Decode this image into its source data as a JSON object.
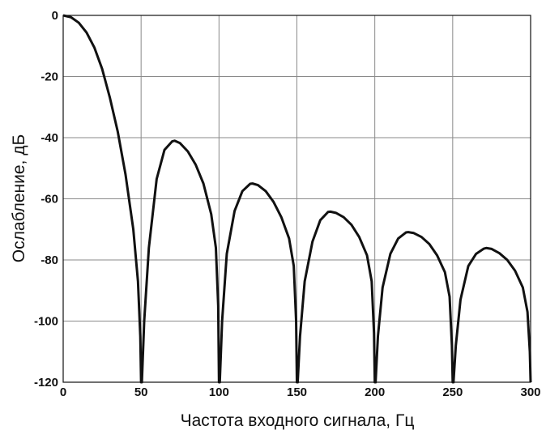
{
  "chart_data": {
    "type": "line",
    "title": "",
    "xlabel": "Частота входного сигнала, Гц",
    "ylabel": "Ослабление, дБ",
    "xlim": [
      0,
      300
    ],
    "ylim": [
      -120,
      0
    ],
    "xticks": [
      0,
      50,
      100,
      150,
      200,
      250,
      300
    ],
    "yticks": [
      0,
      -20,
      -40,
      -60,
      -80,
      -100,
      -120
    ],
    "grid": true,
    "legend": "none",
    "line_color": "#111111",
    "series": [
      {
        "x": [
          0,
          5,
          10,
          15,
          20,
          25,
          30,
          35,
          40,
          45,
          48,
          49.5,
          50,
          50.5,
          52,
          55,
          60,
          65,
          70,
          71.5,
          75,
          80,
          85,
          90,
          95,
          98,
          99.5,
          100,
          100.5,
          102,
          105,
          110,
          115,
          120,
          121.5,
          125,
          130,
          135,
          140,
          145,
          148,
          149.5,
          150,
          150.5,
          152,
          155,
          160,
          165,
          170,
          171.5,
          175,
          180,
          185,
          190,
          195,
          198,
          199.5,
          200,
          200.5,
          202,
          205,
          210,
          215,
          220,
          221.5,
          225,
          230,
          235,
          240,
          245,
          248,
          249.5,
          250,
          250.5,
          252,
          255,
          260,
          265,
          270,
          271.5,
          275,
          280,
          285,
          290,
          295,
          298,
          299.5,
          300
        ],
        "y": [
          0,
          -0.6,
          -2.4,
          -5.6,
          -10.5,
          -17.5,
          -27.0,
          -38.0,
          -52.0,
          -70.0,
          -87.0,
          -105.0,
          -120.0,
          -120.0,
          -100.0,
          -76.0,
          -53.5,
          -44.0,
          -41.2,
          -41.0,
          -41.8,
          -44.5,
          -48.8,
          -55.0,
          -65.0,
          -76.0,
          -95.0,
          -120.0,
          -120.0,
          -100.0,
          -78.0,
          -64.0,
          -57.5,
          -55.1,
          -55.0,
          -55.5,
          -57.5,
          -61.0,
          -66.0,
          -73.0,
          -82.0,
          -100.0,
          -120.0,
          -120.0,
          -105.0,
          -87.0,
          -74.0,
          -67.0,
          -64.3,
          -64.2,
          -64.6,
          -66.0,
          -68.5,
          -72.5,
          -78.5,
          -87.0,
          -104.0,
          -120.0,
          -120.0,
          -105.0,
          -89.0,
          -78.0,
          -73.0,
          -71.0,
          -70.9,
          -71.2,
          -72.5,
          -74.8,
          -78.5,
          -84.0,
          -92.0,
          -108.0,
          -120.0,
          -120.0,
          -108.0,
          -93.0,
          -82.0,
          -78.0,
          -76.3,
          -76.1,
          -76.4,
          -77.8,
          -80.0,
          -83.5,
          -89.0,
          -97.0,
          -110.0,
          -120.0
        ]
      }
    ]
  }
}
